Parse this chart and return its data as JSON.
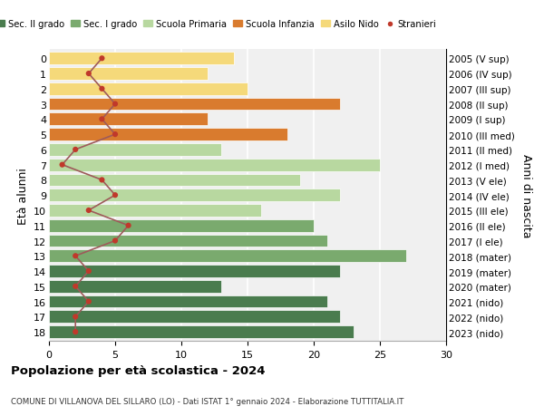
{
  "ages": [
    18,
    17,
    16,
    15,
    14,
    13,
    12,
    11,
    10,
    9,
    8,
    7,
    6,
    5,
    4,
    3,
    2,
    1,
    0
  ],
  "values": [
    23,
    22,
    21,
    13,
    22,
    27,
    21,
    20,
    16,
    22,
    19,
    25,
    13,
    18,
    12,
    22,
    15,
    12,
    14
  ],
  "stranieri": [
    2,
    2,
    3,
    2,
    3,
    2,
    5,
    6,
    3,
    5,
    4,
    1,
    2,
    5,
    4,
    5,
    4,
    3,
    4
  ],
  "right_labels": [
    "2005 (V sup)",
    "2006 (IV sup)",
    "2007 (III sup)",
    "2008 (II sup)",
    "2009 (I sup)",
    "2010 (III med)",
    "2011 (II med)",
    "2012 (I med)",
    "2013 (V ele)",
    "2014 (IV ele)",
    "2015 (III ele)",
    "2016 (II ele)",
    "2017 (I ele)",
    "2018 (mater)",
    "2019 (mater)",
    "2020 (mater)",
    "2021 (nido)",
    "2022 (nido)",
    "2023 (nido)"
  ],
  "bar_colors": [
    "#4a7c4e",
    "#4a7c4e",
    "#4a7c4e",
    "#4a7c4e",
    "#4a7c4e",
    "#7aaa6e",
    "#7aaa6e",
    "#7aaa6e",
    "#b8d8a0",
    "#b8d8a0",
    "#b8d8a0",
    "#b8d8a0",
    "#b8d8a0",
    "#d97b2e",
    "#d97b2e",
    "#d97b2e",
    "#f5d97a",
    "#f5d97a",
    "#f5d97a"
  ],
  "legend_labels": [
    "Sec. II grado",
    "Sec. I grado",
    "Scuola Primaria",
    "Scuola Infanzia",
    "Asilo Nido",
    "Stranieri"
  ],
  "legend_colors": [
    "#4a7c4e",
    "#7aaa6e",
    "#b8d8a0",
    "#d97b2e",
    "#f5d97a",
    "#c0392b"
  ],
  "ylabel_left": "Età alunni",
  "ylabel_right": "Anni di nascita",
  "title": "Popolazione per età scolastica - 2024",
  "subtitle": "COMUNE DI VILLANOVA DEL SILLARO (LO) - Dati ISTAT 1° gennaio 2024 - Elaborazione TUTTITALIA.IT",
  "xlim": [
    0,
    30
  ],
  "xticks": [
    0,
    5,
    10,
    15,
    20,
    25,
    30
  ],
  "stranieri_color": "#c0392b",
  "stranieri_line_color": "#9e5a5a",
  "background_color": "#ffffff",
  "plot_bg_color": "#f0f0f0"
}
